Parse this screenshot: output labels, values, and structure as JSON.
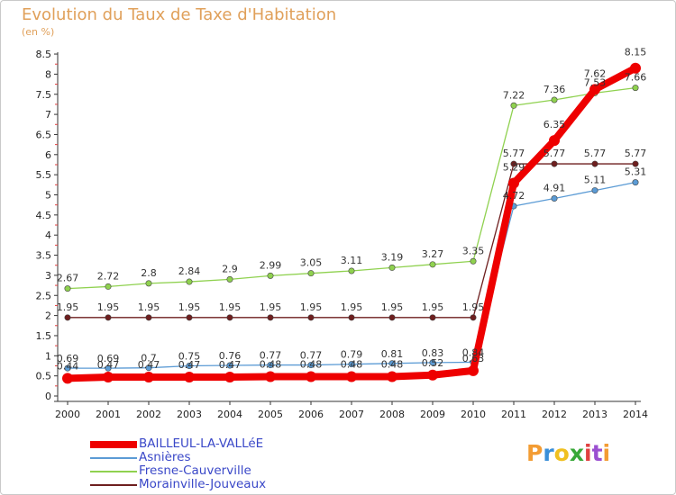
{
  "title": "Evolution du Taux de Taxe d'Habitation",
  "subtitle": "(en %)",
  "logo": {
    "text": "Proxiti",
    "colors": [
      "#f39c33",
      "#3a8fd8",
      "#f0c020",
      "#38a838",
      "#e04040",
      "#9b4fd0",
      "#f39c33"
    ]
  },
  "chart_data": {
    "type": "line",
    "title": "Evolution du Taux de Taxe d'Habitation",
    "ylabel": "(en %)",
    "xlabel": "",
    "x": [
      "2000",
      "2001",
      "2002",
      "2003",
      "2004",
      "2005",
      "2006",
      "2007",
      "2008",
      "2009",
      "2010",
      "2011",
      "2012",
      "2013",
      "2014"
    ],
    "ylim": [
      0,
      8.5
    ],
    "yticks": [
      "0",
      "0.5",
      "1",
      "1.5",
      "2",
      "2.5",
      "3",
      "3.5",
      "4",
      "4.5",
      "5",
      "5.5",
      "6",
      "6.5",
      "7",
      "7.5",
      "8",
      "8.5"
    ],
    "grid": false,
    "legend_position": "bottom-left",
    "series": [
      {
        "name": "BAILLEUL-LA-VALLéE",
        "color": "#ee0000",
        "width": 8,
        "values": [
          0.44,
          0.47,
          0.47,
          0.47,
          0.47,
          0.48,
          0.48,
          0.48,
          0.48,
          0.52,
          0.63,
          5.29,
          6.35,
          7.62,
          8.15
        ],
        "labels": [
          "0.44",
          "0.47",
          "0.47",
          "0.47",
          "0.47",
          "0.48",
          "0.48",
          "0.48",
          "0.48",
          "0.52",
          "0.63",
          "5.29",
          "6.35",
          "7.62",
          "8.15"
        ]
      },
      {
        "name": "Asnières",
        "color": "#5b9bd5",
        "width": 1.3,
        "values": [
          0.69,
          0.69,
          0.7,
          0.75,
          0.76,
          0.77,
          0.77,
          0.79,
          0.81,
          0.83,
          0.84,
          4.72,
          4.91,
          5.11,
          5.31
        ],
        "labels": [
          "0.69",
          "0.69",
          "0.7",
          "0.75",
          "0.76",
          "0.77",
          "0.77",
          "0.79",
          "0.81",
          "0.83",
          "0.84",
          "4.72",
          "4.91",
          "5.11",
          "5.31"
        ]
      },
      {
        "name": "Fresne-Cauverville",
        "color": "#8fd14f",
        "width": 1.3,
        "values": [
          2.67,
          2.72,
          2.8,
          2.84,
          2.9,
          2.99,
          3.05,
          3.11,
          3.19,
          3.27,
          3.35,
          7.22,
          7.36,
          7.53,
          7.66
        ],
        "labels": [
          "2.67",
          "2.72",
          "2.8",
          "2.84",
          "2.9",
          "2.99",
          "3.05",
          "3.11",
          "3.19",
          "3.27",
          "3.35",
          "7.22",
          "7.36",
          "7.53",
          "7.66"
        ]
      },
      {
        "name": "Morainville-Jouveaux",
        "color": "#6e1f1f",
        "width": 1.3,
        "values": [
          1.95,
          1.95,
          1.95,
          1.95,
          1.95,
          1.95,
          1.95,
          1.95,
          1.95,
          1.95,
          1.95,
          5.77,
          5.77,
          5.77,
          5.77
        ],
        "labels": [
          "1.95",
          "1.95",
          "1.95",
          "1.95",
          "1.95",
          "1.95",
          "1.95",
          "1.95",
          "1.95",
          "1.95",
          "1.95",
          "5.77",
          "5.77",
          "5.77",
          "5.77"
        ]
      }
    ]
  }
}
